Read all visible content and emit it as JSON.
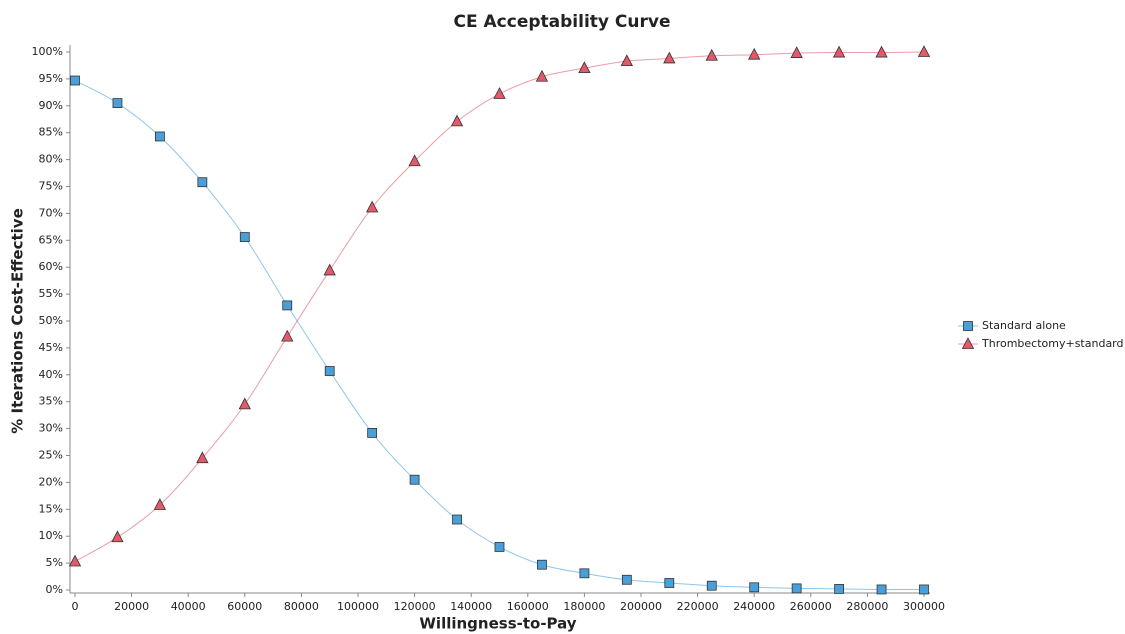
{
  "chart_data": {
    "type": "line",
    "title": "CE Acceptability Curve",
    "x_label": "Willingness-to-Pay",
    "y_label": "% Iterations Cost-Effective",
    "x": [
      0,
      15000,
      30000,
      45000,
      60000,
      75000,
      90000,
      105000,
      120000,
      135000,
      150000,
      165000,
      180000,
      195000,
      210000,
      225000,
      240000,
      255000,
      270000,
      285000,
      300000
    ],
    "series": [
      {
        "name": "Standard alone",
        "color": "#4a9fd8",
        "marker": "square",
        "values": [
          94.7,
          90.5,
          84.3,
          75.8,
          65.6,
          52.9,
          40.7,
          29.2,
          20.5,
          13.1,
          8.0,
          4.7,
          3.1,
          1.9,
          1.3,
          0.8,
          0.5,
          0.3,
          0.2,
          0.1,
          0.1
        ]
      },
      {
        "name": "Thrombectomy+standard",
        "color": "#e05a6a",
        "marker": "triangle",
        "values": [
          5.3,
          9.8,
          15.8,
          24.5,
          34.5,
          47.1,
          59.4,
          71.1,
          79.7,
          87.1,
          92.2,
          95.4,
          97.0,
          98.3,
          98.8,
          99.3,
          99.5,
          99.8,
          99.9,
          99.9,
          100.0
        ]
      }
    ],
    "xlim": [
      0,
      300000
    ],
    "xticks": [
      0,
      20000,
      40000,
      60000,
      80000,
      100000,
      120000,
      140000,
      160000,
      180000,
      200000,
      220000,
      240000,
      260000,
      280000,
      300000
    ],
    "ylim": [
      0,
      100
    ],
    "yticks": [
      {
        "value": 0,
        "label": "0%"
      },
      {
        "value": 5,
        "label": "5%"
      },
      {
        "value": 10,
        "label": "10%"
      },
      {
        "value": 15,
        "label": "15%"
      },
      {
        "value": 20,
        "label": "20%"
      },
      {
        "value": 25,
        "label": "25%"
      },
      {
        "value": 30,
        "label": "30%"
      },
      {
        "value": 35,
        "label": "35%"
      },
      {
        "value": 40,
        "label": "40%"
      },
      {
        "value": 45,
        "label": "45%"
      },
      {
        "value": 50,
        "label": "50%"
      },
      {
        "value": 55,
        "label": "55%"
      },
      {
        "value": 60,
        "label": "60%"
      },
      {
        "value": 65,
        "label": "65%"
      },
      {
        "value": 70,
        "label": "70%"
      },
      {
        "value": 75,
        "label": "75%"
      },
      {
        "value": 80,
        "label": "80%"
      },
      {
        "value": 85,
        "label": "85%"
      },
      {
        "value": 90,
        "label": "90%"
      },
      {
        "value": 95,
        "label": "95%"
      },
      {
        "value": 100,
        "label": "100%"
      }
    ],
    "grid": false,
    "legend": "right"
  }
}
